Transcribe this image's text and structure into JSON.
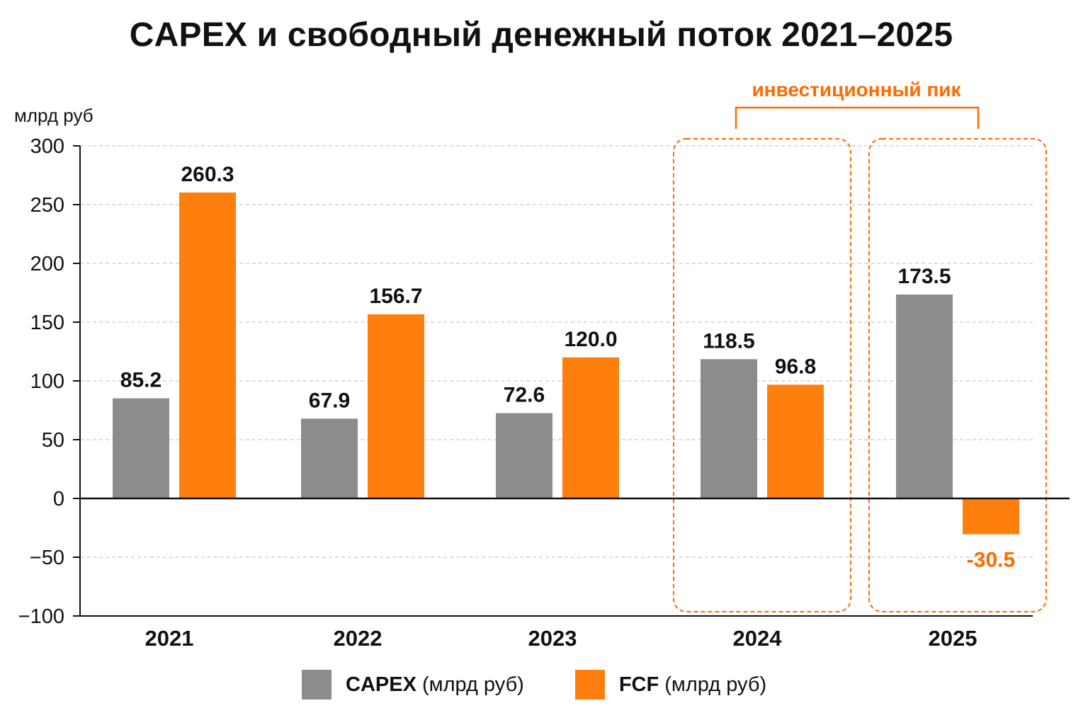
{
  "title": "CAPEX и свободный денежный поток 2021–2025",
  "chart_data": {
    "type": "bar",
    "title": "CAPEX и свободный денежный поток 2021–2025",
    "ylabel": "млрд руб",
    "ylim": [
      -100,
      300
    ],
    "yticks": [
      300,
      250,
      200,
      150,
      100,
      50,
      0,
      -50,
      -100
    ],
    "ytick_labels": [
      "300",
      "250",
      "200",
      "150",
      "100",
      "50",
      "0",
      "−50",
      "−100"
    ],
    "grid": true,
    "categories": [
      "2021",
      "2022",
      "2023",
      "2024",
      "2025"
    ],
    "series": [
      {
        "name": "CAPEX (млрд руб)",
        "name_bold": "CAPEX",
        "name_rest": " (млрд руб)",
        "color": "#8c8c8c",
        "values": [
          85.2,
          67.9,
          72.6,
          118.5,
          173.5
        ],
        "labels": [
          "85.2",
          "67.9",
          "72.6",
          "118.5",
          "173.5"
        ]
      },
      {
        "name": "FCF (млрд руб)",
        "name_bold": "FCF",
        "name_rest": " (млрд руб)",
        "color": "#ff7f0e",
        "values": [
          260.3,
          156.7,
          120.0,
          96.8,
          -30.5
        ],
        "labels": [
          "260.3",
          "156.7",
          "120.0",
          "96.8",
          "-30.5"
        ]
      }
    ],
    "annotation": {
      "text": "инвестиционный пик",
      "color": "#ff6a00",
      "categories": [
        "2024",
        "2025"
      ]
    },
    "legend_position": "bottom"
  }
}
